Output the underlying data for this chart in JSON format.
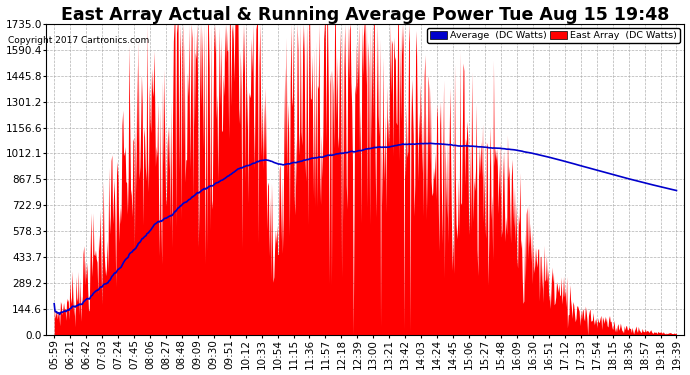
{
  "title": "East Array Actual & Running Average Power Tue Aug 15 19:48",
  "copyright": "Copyright 2017 Cartronics.com",
  "legend_avg": "Average  (DC Watts)",
  "legend_east": "East Array  (DC Watts)",
  "yticks": [
    0.0,
    144.6,
    289.2,
    433.7,
    578.3,
    722.9,
    867.5,
    1012.1,
    1156.6,
    1301.2,
    1445.8,
    1590.4,
    1735.0
  ],
  "ylim": [
    0.0,
    1735.0
  ],
  "bg_color": "#ffffff",
  "plot_bg_color": "#ffffff",
  "grid_color": "#aaaaaa",
  "red_color": "#ff0000",
  "blue_color": "#0000cc",
  "title_fontsize": 12.5,
  "tick_fontsize": 7.5,
  "xtick_labels": [
    "05:59",
    "06:21",
    "06:42",
    "07:03",
    "07:24",
    "07:45",
    "08:06",
    "08:27",
    "08:48",
    "09:09",
    "09:30",
    "09:51",
    "10:12",
    "10:33",
    "10:54",
    "11:15",
    "11:36",
    "11:57",
    "12:18",
    "12:39",
    "13:00",
    "13:21",
    "13:42",
    "14:03",
    "14:24",
    "14:45",
    "15:06",
    "15:27",
    "15:48",
    "16:09",
    "16:30",
    "16:51",
    "17:12",
    "17:33",
    "17:54",
    "18:15",
    "18:36",
    "18:57",
    "19:18",
    "19:39"
  ],
  "n_labels": 40,
  "n_samples": 800
}
